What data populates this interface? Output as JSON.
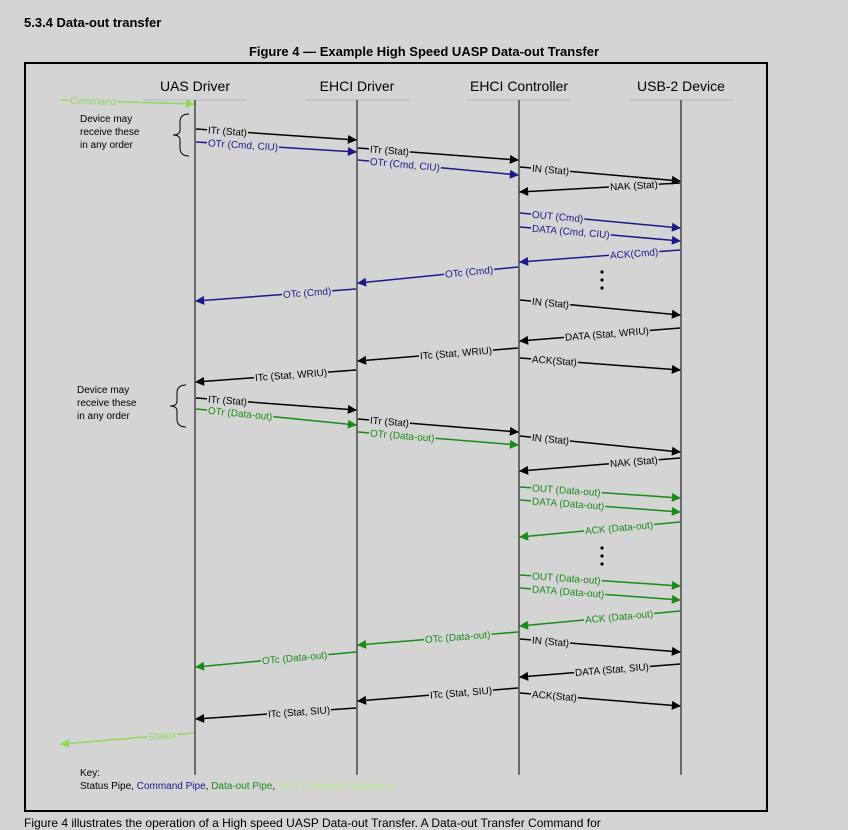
{
  "section": {
    "heading": "5.3.4 Data-out transfer"
  },
  "figure": {
    "title": "Figure 4 — Example High Speed UASP Data-out Transfer"
  },
  "colors": {
    "status": "#000000",
    "command": "#1a1a8c",
    "dataout": "#1a8c1a",
    "sequence": "#90d860"
  },
  "lifelines": [
    {
      "label": "UAS Driver"
    },
    {
      "label": "EHCI Driver"
    },
    {
      "label": "EHCI Controller"
    },
    {
      "label": "USB-2 Device"
    }
  ],
  "braces": [
    {
      "lines": [
        "Device may",
        "receive these",
        "in any order"
      ]
    },
    {
      "lines": [
        "Device may",
        "receive these",
        "in any order"
      ]
    }
  ],
  "messages": [
    {
      "label": "Command",
      "pipe": "sequence"
    },
    {
      "label": "ITr (Stat)",
      "pipe": "status"
    },
    {
      "label": "OTr (Cmd, CIU)",
      "pipe": "command"
    },
    {
      "label": "ITr (Stat)",
      "pipe": "status"
    },
    {
      "label": "OTr (Cmd, CIU)",
      "pipe": "command"
    },
    {
      "label": "IN (Stat)",
      "pipe": "status"
    },
    {
      "label": "NAK (Stat)",
      "pipe": "status"
    },
    {
      "label": "OUT (Cmd)",
      "pipe": "command"
    },
    {
      "label": "DATA (Cmd, CIU)",
      "pipe": "command"
    },
    {
      "label": "ACK(Cmd)",
      "pipe": "command"
    },
    {
      "label": "OTc (Cmd)",
      "pipe": "command"
    },
    {
      "label": "OTc (Cmd)",
      "pipe": "command"
    },
    {
      "label": "IN (Stat)",
      "pipe": "status"
    },
    {
      "label": "DATA (Stat, WRIU)",
      "pipe": "status"
    },
    {
      "label": "ITc (Stat, WRIU)",
      "pipe": "status"
    },
    {
      "label": "ACK(Stat)",
      "pipe": "status"
    },
    {
      "label": "ITc (Stat, WRIU)",
      "pipe": "status"
    },
    {
      "label": "ITr (Stat)",
      "pipe": "status"
    },
    {
      "label": "OTr (Data-out)",
      "pipe": "dataout"
    },
    {
      "label": "ITr (Stat)",
      "pipe": "status"
    },
    {
      "label": "OTr (Data-out)",
      "pipe": "dataout"
    },
    {
      "label": "IN (Stat)",
      "pipe": "status"
    },
    {
      "label": "NAK (Stat)",
      "pipe": "status"
    },
    {
      "label": "OUT (Data-out)",
      "pipe": "dataout"
    },
    {
      "label": "DATA (Data-out)",
      "pipe": "dataout"
    },
    {
      "label": "ACK (Data-out)",
      "pipe": "dataout"
    },
    {
      "label": "OUT (Data-out)",
      "pipe": "dataout"
    },
    {
      "label": "DATA (Data-out)",
      "pipe": "dataout"
    },
    {
      "label": "ACK (Data-out)",
      "pipe": "dataout"
    },
    {
      "label": "OTc (Data-out)",
      "pipe": "dataout"
    },
    {
      "label": "IN (Stat)",
      "pipe": "status"
    },
    {
      "label": "OTc (Data-out)",
      "pipe": "dataout"
    },
    {
      "label": "DATA (Stat, SIU)",
      "pipe": "status"
    },
    {
      "label": "ITc (Stat, SIU)",
      "pipe": "status"
    },
    {
      "label": "ACK(Stat)",
      "pipe": "status"
    },
    {
      "label": "ITc (Stat, SIU)",
      "pipe": "status"
    },
    {
      "label": "Status",
      "pipe": "sequence"
    }
  ],
  "key": {
    "title": "Key:",
    "status_pipe": "Status Pipe",
    "sep1": ", ",
    "command_pipe": "Command Pipe",
    "sep2": ", ",
    "dataout_pipe": "Data-out Pipe",
    "sep3": ", ",
    "sequence": "UAS Command Sequence"
  },
  "footer": {
    "caption": "Figure 4 illustrates the operation of a High speed UASP Data-out Transfer. A Data-out Transfer Command for"
  }
}
